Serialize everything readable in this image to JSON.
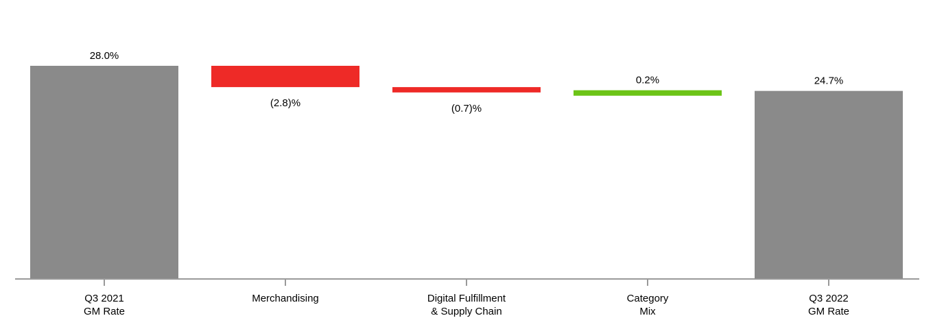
{
  "chart_data": {
    "type": "waterfall",
    "categories": [
      [
        "Q3 2021",
        "GM Rate"
      ],
      [
        "Merchandising"
      ],
      [
        "Digital Fulfillment",
        "& Supply Chain"
      ],
      [
        "Category",
        "Mix"
      ],
      [
        "Q3 2022",
        "GM Rate"
      ]
    ],
    "values": [
      28.0,
      -2.8,
      -0.7,
      0.2,
      24.7
    ],
    "kinds": [
      "total",
      "delta",
      "delta",
      "delta",
      "total"
    ],
    "labels": [
      "28.0%",
      "(2.8)%",
      "(0.7)%",
      "0.2%",
      "24.7%"
    ],
    "ylim": [
      0,
      28.0
    ],
    "grid": false,
    "colors": {
      "total": "#8a8a8a",
      "decrease": "#ee2a27",
      "increase": "#6cc417",
      "axis": "#999999"
    }
  }
}
